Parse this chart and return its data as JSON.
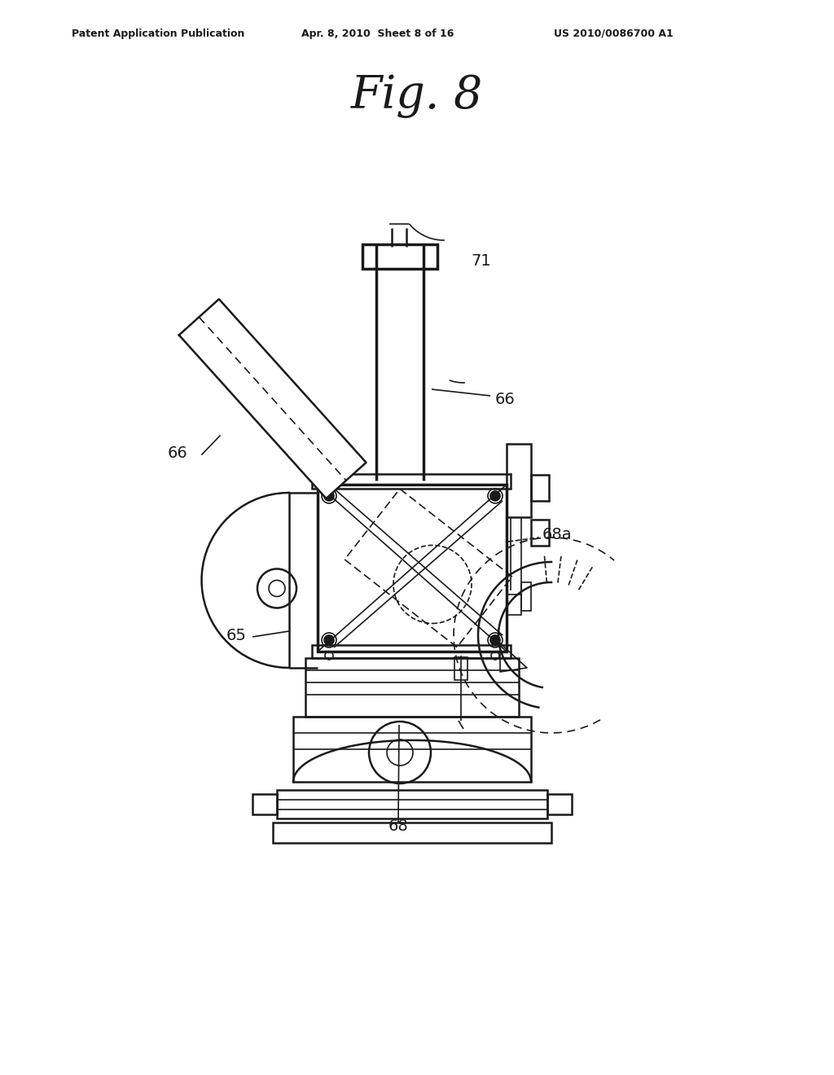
{
  "title": "Fig. 8",
  "header_left": "Patent Application Publication",
  "header_mid": "Apr. 8, 2010  Sheet 8 of 16",
  "header_right": "US 2010/0086700 A1",
  "bg_color": "#ffffff",
  "line_color": "#1a1a1a",
  "label_65": "65",
  "label_66a": "66",
  "label_66b": "66",
  "label_68": "68",
  "label_68a": "68a",
  "label_71": "71"
}
